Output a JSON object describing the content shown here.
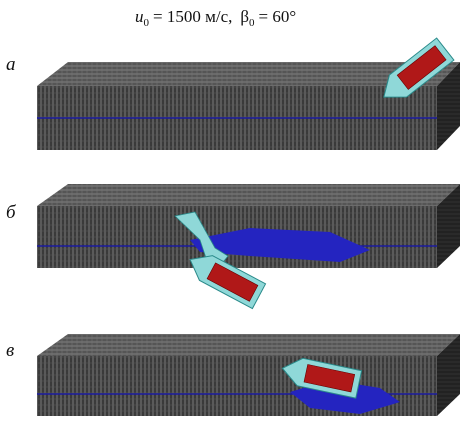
{
  "header": {
    "title": {
      "u_symbol": "u",
      "u_sub": "0",
      "u_value": "= 1500 м/с,",
      "beta_symbol": "β",
      "beta_sub": "0",
      "beta_value": "= 60°"
    }
  },
  "panels": [
    {
      "label": "а"
    },
    {
      "label": "б"
    },
    {
      "label": "в"
    }
  ]
}
